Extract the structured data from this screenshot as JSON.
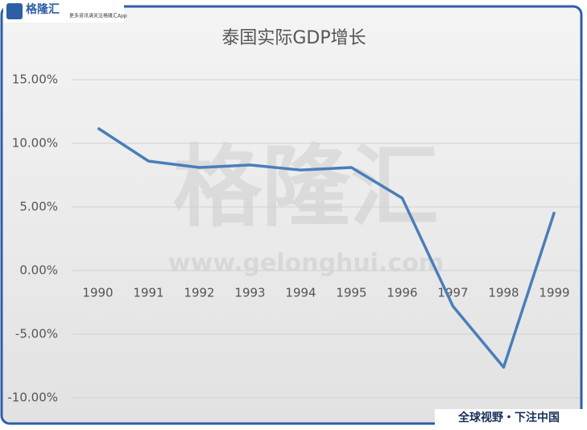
{
  "chart_data": {
    "type": "line",
    "title": "泰国实际GDP增长",
    "categories": [
      "1990",
      "1991",
      "1992",
      "1993",
      "1994",
      "1995",
      "1996",
      "1997",
      "1998",
      "1999"
    ],
    "values": [
      11.2,
      8.6,
      8.1,
      8.3,
      7.9,
      8.1,
      5.7,
      -2.8,
      -7.6,
      4.6
    ],
    "color": "#4a7ebb",
    "ylim": [
      -10,
      15
    ],
    "yticks": [
      {
        "value": -10,
        "label": "-10.00%"
      },
      {
        "value": -5,
        "label": "-5.00%"
      },
      {
        "value": 0,
        "label": "0.00%"
      },
      {
        "value": 5,
        "label": "5.00%"
      },
      {
        "value": 10,
        "label": "10.00%"
      },
      {
        "value": 15,
        "label": "15.00%"
      }
    ],
    "grid": true
  },
  "branding": {
    "logo": "格隆汇",
    "logo_sub": "更多资讯请关注格隆汇App",
    "watermark": "格隆汇",
    "watermark_url": "www.gelonghui.com",
    "slogan": "全球视野・下注中国"
  }
}
